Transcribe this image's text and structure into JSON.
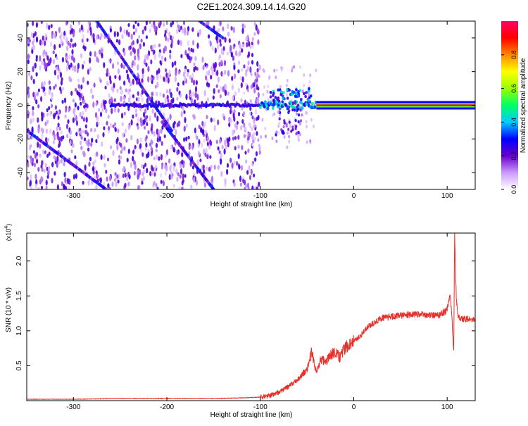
{
  "title": "C2E1.2024.309.14.14.G20",
  "colors": {
    "snr_line": "#e8302a",
    "background": "#ffffff",
    "axes": "#000000"
  },
  "chart_data": [
    {
      "type": "heatmap",
      "xlabel": "Height of straight line (km)",
      "ylabel": "Frequency (Hz)",
      "xlim": [
        -350,
        130
      ],
      "ylim": [
        -50,
        50
      ],
      "x_ticks": [
        -300,
        -200,
        -100,
        0,
        100
      ],
      "y_ticks": [
        -40,
        -20,
        0,
        20,
        40
      ],
      "colorbar": {
        "label": "Normalized spectral amplitude",
        "range": [
          0.0,
          1.0
        ],
        "ticks": [
          "0.0",
          "0.2",
          "0.4",
          "0.6",
          "0.8"
        ],
        "colormap": [
          "#ffffff",
          "#cc99ff",
          "#6600cc",
          "#0000ff",
          "#00ccff",
          "#00ff66",
          "#99ff00",
          "#ffff00",
          "#ff8800",
          "#ff0000",
          "#ff0066"
        ]
      },
      "grid": false
    },
    {
      "type": "line",
      "xlabel": "Height of straight line (km)",
      "ylabel": "SNR (10 * v/v)",
      "y_multiplier": "(x10",
      "y_multiplier_exp": "4",
      "y_multiplier_close": ")",
      "xlim": [
        -350,
        130
      ],
      "ylim": [
        0,
        2.4
      ],
      "x_ticks": [
        -300,
        -200,
        -100,
        0,
        100
      ],
      "y_ticks": [
        0.5,
        1.0,
        1.5,
        2.0
      ],
      "y_tick_labels": [
        "0.5",
        "1.0",
        "1.5",
        "2.0"
      ],
      "series": [
        {
          "x": [
            -350,
            -300,
            -250,
            -200,
            -150,
            -120,
            -100,
            -90,
            -80,
            -70,
            -60,
            -50,
            -45,
            -40,
            -35,
            -30,
            -25,
            -20,
            -15,
            -10,
            -5,
            0,
            5,
            10,
            15,
            20,
            25,
            30,
            40,
            50,
            60,
            70,
            80,
            90,
            95,
            100,
            103,
            105,
            107,
            108,
            110,
            112,
            115,
            120,
            125,
            130
          ],
          "y": [
            0.02,
            0.02,
            0.03,
            0.03,
            0.03,
            0.04,
            0.05,
            0.07,
            0.12,
            0.2,
            0.3,
            0.45,
            0.7,
            0.4,
            0.6,
            0.55,
            0.65,
            0.7,
            0.62,
            0.75,
            0.8,
            0.85,
            0.9,
            0.98,
            1.05,
            1.1,
            1.14,
            1.18,
            1.2,
            1.22,
            1.23,
            1.24,
            1.22,
            1.22,
            1.25,
            1.3,
            1.55,
            1.2,
            0.7,
            2.35,
            1.4,
            1.2,
            1.17,
            1.17,
            1.16,
            1.15
          ]
        }
      ],
      "grid": false
    }
  ]
}
